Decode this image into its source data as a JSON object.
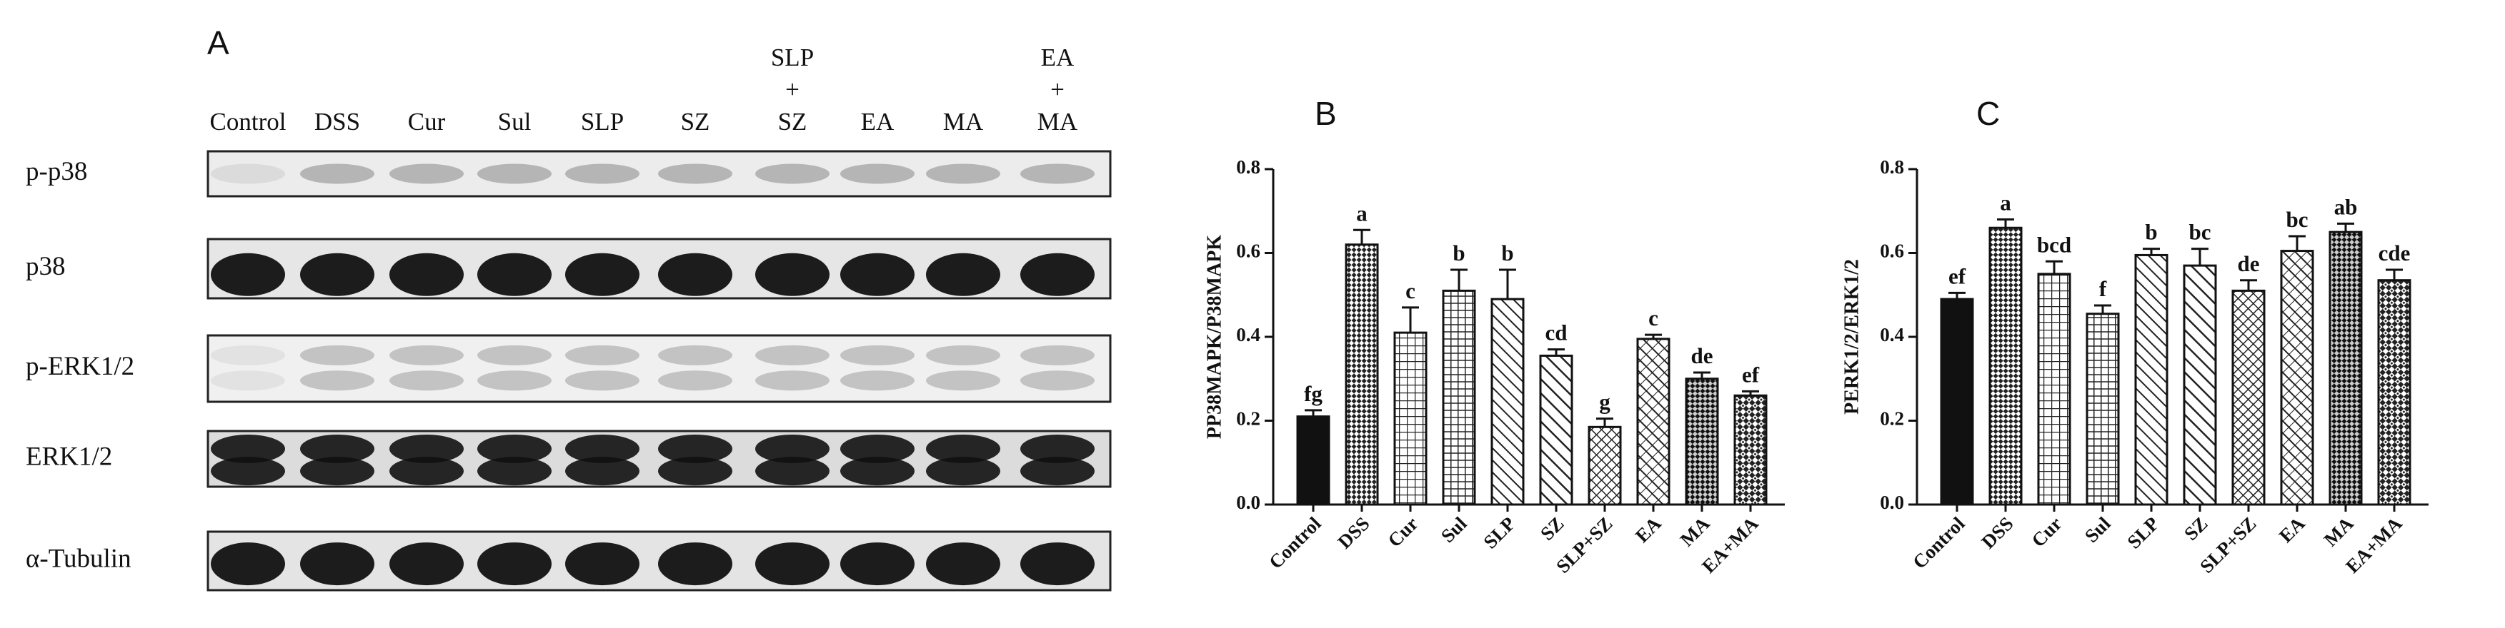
{
  "panel_a": {
    "label": "A",
    "lanes": [
      [
        "Control"
      ],
      [
        "DSS"
      ],
      [
        "Cur"
      ],
      [
        "Sul"
      ],
      [
        "SLP"
      ],
      [
        "SZ"
      ],
      [
        "SLP",
        "+",
        "SZ"
      ],
      [
        "EA"
      ],
      [
        "MA"
      ],
      [
        "EA",
        "+",
        "MA"
      ]
    ],
    "rows": [
      "p-p38",
      "p38",
      "p-ERK1/2",
      "ERK1/2",
      "α-Tubulin"
    ]
  },
  "chart_data": [
    {
      "type": "bar",
      "title": "B",
      "y_label": "PP38MAPK/P38MAPK",
      "categories": [
        "Control",
        "DSS",
        "Cur",
        "Sul",
        "SLP",
        "SZ",
        "SLP+SZ",
        "EA",
        "MA",
        "EA+MA"
      ],
      "values": [
        0.21,
        0.62,
        0.41,
        0.51,
        0.49,
        0.355,
        0.185,
        0.395,
        0.3,
        0.26
      ],
      "errors": [
        0.015,
        0.035,
        0.06,
        0.05,
        0.07,
        0.015,
        0.02,
        0.01,
        0.015,
        0.01
      ],
      "annotations": [
        "fg",
        "a",
        "c",
        "b",
        "b",
        "cd",
        "g",
        "c",
        "de",
        "ef"
      ],
      "ylim": [
        0,
        0.8
      ],
      "yticks": [
        {
          "value": 0,
          "label": "0.0"
        },
        0.2,
        0.4,
        0.6,
        0.8
      ]
    },
    {
      "type": "bar",
      "title": "C",
      "y_label": "PERK1/2/ERK1/2",
      "categories": [
        "Control",
        "DSS",
        "Cur",
        "Sul",
        "SLP",
        "SZ",
        "SLP+SZ",
        "EA",
        "MA",
        "EA+MA"
      ],
      "values": [
        0.49,
        0.66,
        0.55,
        0.455,
        0.595,
        0.57,
        0.51,
        0.605,
        0.65,
        0.535
      ],
      "errors": [
        0.015,
        0.02,
        0.03,
        0.02,
        0.015,
        0.04,
        0.025,
        0.035,
        0.02,
        0.025
      ],
      "annotations": [
        "ef",
        "a",
        "bcd",
        "f",
        "b",
        "bc",
        "de",
        "bc",
        "ab",
        "cde"
      ],
      "ylim": [
        0,
        0.8
      ],
      "yticks": [
        {
          "value": 0,
          "label": "0.0"
        },
        0.2,
        0.4,
        0.6,
        0.8
      ]
    }
  ]
}
